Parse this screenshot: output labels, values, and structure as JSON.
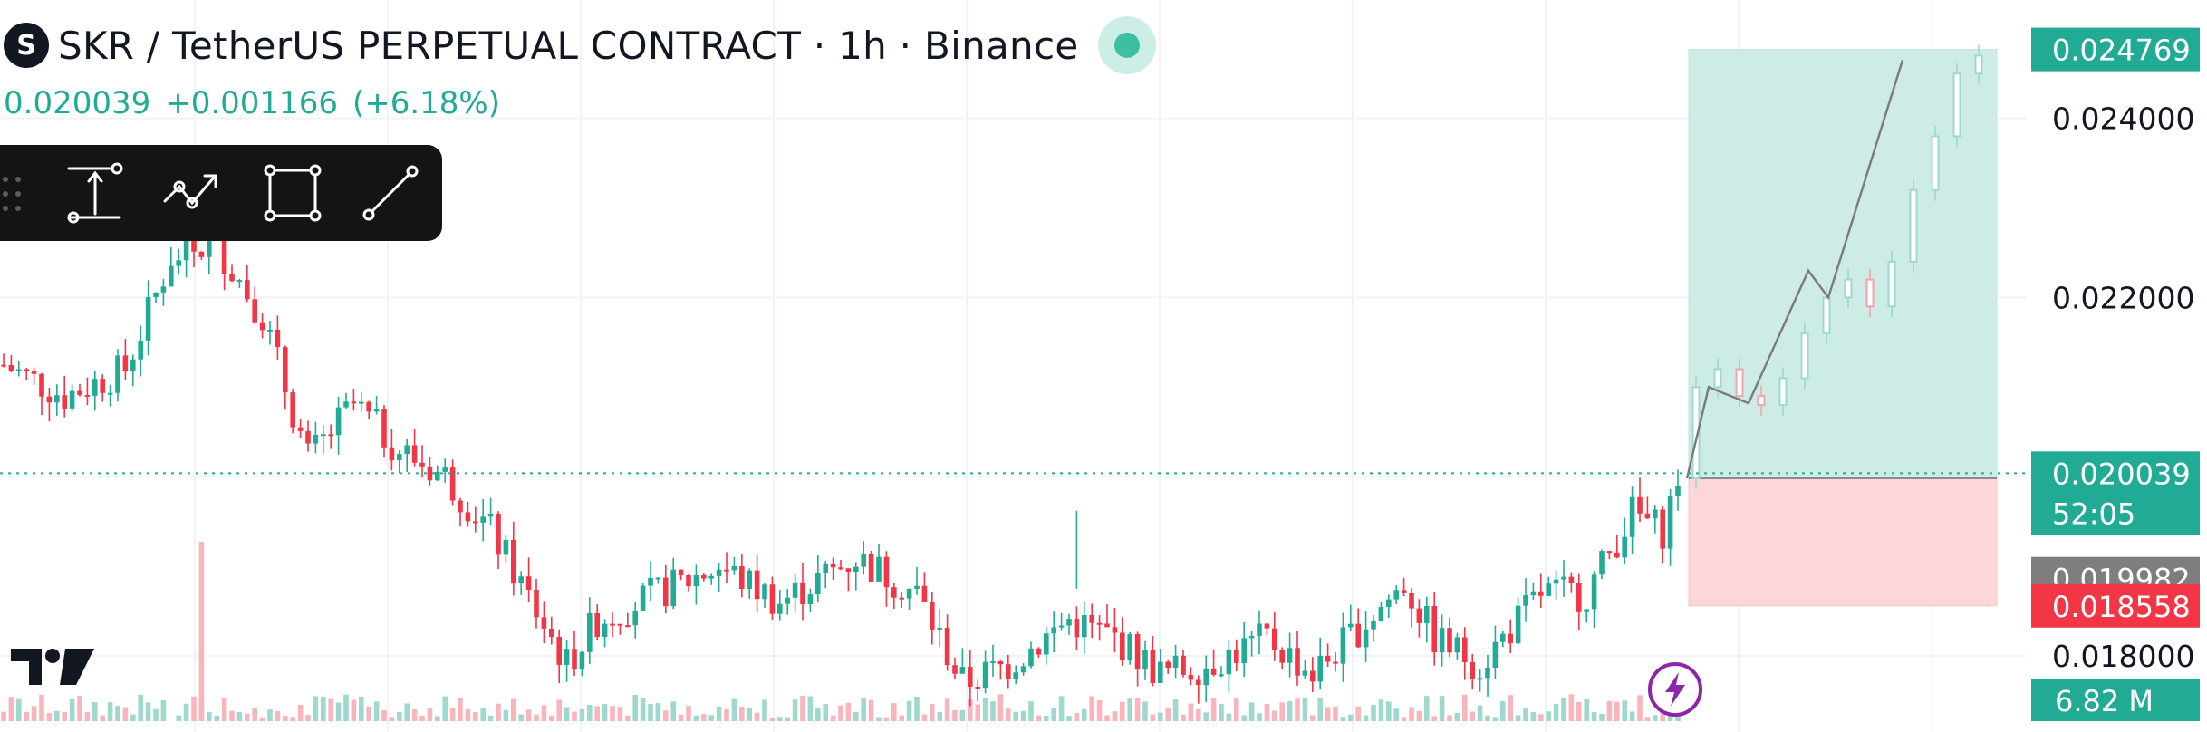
{
  "header": {
    "symbol_initial": "S",
    "title": "SKR / TetherUS PERPETUAL CONTRACT · 1h · Binance",
    "last": "0.020039",
    "change": "+0.001166",
    "change_pct": "(+6.18%)"
  },
  "toolbar": {
    "tools": [
      "measure-tool",
      "path-tool",
      "rectangle-tool",
      "trend-line-tool"
    ]
  },
  "colors": {
    "up": "#22ab94",
    "down": "#f23645",
    "profit_zone": "#cdece6",
    "loss_zone": "#fcd6d9",
    "label_dark": "#7e7e7e"
  },
  "chart_data": {
    "type": "candlestick",
    "exchange": "Binance",
    "interval": "1h",
    "ylim": [
      0.01715,
      0.0252
    ],
    "y_ticks": [
      "0.024000",
      "0.022000",
      "0.018000"
    ],
    "price_labels": {
      "take_profit": "0.024769",
      "last_price": "0.020039",
      "countdown": "52:05",
      "entry": "0.019982",
      "stop_loss": "0.018558",
      "volume": "6.82 M"
    },
    "volume_spike_index": 0,
    "position": {
      "entry": 0.019982,
      "take_profit": 0.024769,
      "stop_loss": 0.018558
    },
    "series": [
      {
        "x": 0,
        "y": 0.02125
      },
      {
        "x": 8,
        "y": 0.0209
      },
      {
        "x": 16,
        "y": 0.0212
      },
      {
        "x": 22,
        "y": 0.02245
      },
      {
        "x": 28,
        "y": 0.0226
      },
      {
        "x": 34,
        "y": 0.0218
      },
      {
        "x": 40,
        "y": 0.0202
      },
      {
        "x": 46,
        "y": 0.0208
      },
      {
        "x": 52,
        "y": 0.0203
      },
      {
        "x": 58,
        "y": 0.02
      },
      {
        "x": 64,
        "y": 0.0194
      },
      {
        "x": 70,
        "y": 0.0185
      },
      {
        "x": 74,
        "y": 0.0179
      },
      {
        "x": 78,
        "y": 0.0184
      },
      {
        "x": 86,
        "y": 0.0187
      },
      {
        "x": 94,
        "y": 0.019
      },
      {
        "x": 102,
        "y": 0.0186
      },
      {
        "x": 112,
        "y": 0.0191
      },
      {
        "x": 120,
        "y": 0.0187
      },
      {
        "x": 126,
        "y": 0.0177
      },
      {
        "x": 132,
        "y": 0.0179
      },
      {
        "x": 140,
        "y": 0.0184
      },
      {
        "x": 146,
        "y": 0.0182
      },
      {
        "x": 152,
        "y": 0.0178
      },
      {
        "x": 158,
        "y": 0.0179
      },
      {
        "x": 166,
        "y": 0.0182
      },
      {
        "x": 172,
        "y": 0.0178
      },
      {
        "x": 178,
        "y": 0.0183
      },
      {
        "x": 184,
        "y": 0.0188
      },
      {
        "x": 188,
        "y": 0.0182
      },
      {
        "x": 194,
        "y": 0.0179
      },
      {
        "x": 198,
        "y": 0.0183
      },
      {
        "x": 202,
        "y": 0.0187
      },
      {
        "x": 208,
        "y": 0.0187
      },
      {
        "x": 214,
        "y": 0.0196
      },
      {
        "x": 218,
        "y": 0.0194
      },
      {
        "x": 220,
        "y": 0.02
      }
    ]
  }
}
